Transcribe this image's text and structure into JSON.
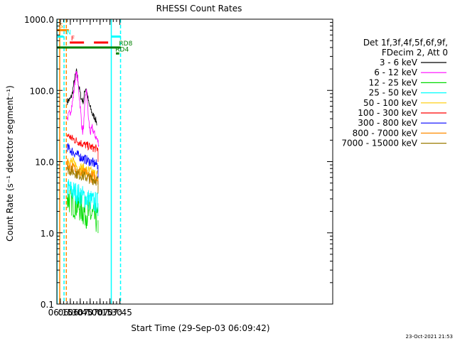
{
  "chart_data": {
    "type": "line",
    "title": "RHESSI Count Rates",
    "xlabel": "Start Time (29-Sep-03 06:09:42)",
    "ylabel": "Count Rate (s⁻¹ detector segment⁻¹)",
    "yscale": "log",
    "ylim": [
      0.1,
      1000
    ],
    "xlim_min": [
      369.7,
      787.0
    ],
    "y_ticks": [
      {
        "value": 1000,
        "label": "1000.0"
      },
      {
        "value": 100,
        "label": "100.0"
      },
      {
        "value": 10,
        "label": "10.0"
      },
      {
        "value": 1,
        "label": "1.0"
      },
      {
        "value": 0.1,
        "label": "0.1"
      }
    ],
    "x_ticks": [
      {
        "value": 375,
        "label": "06:15"
      },
      {
        "value": 390,
        "label": "06:30"
      },
      {
        "value": 405,
        "label": "06:45"
      },
      {
        "value": 420,
        "label": "07:00"
      },
      {
        "value": 435,
        "label": "07:15"
      },
      {
        "value": 450,
        "label": "07:30"
      },
      {
        "value": 465,
        "label": "07:45"
      }
    ],
    "legend_header": [
      "Det 1f,3f,4f,5f,6f,9f,",
      "FDecim 2, Att 0"
    ],
    "series": [
      {
        "name": "3 - 6 keV",
        "color": "#000000",
        "points": [
          [
            385.3,
            70
          ],
          [
            390,
            75
          ],
          [
            393,
            90
          ],
          [
            395,
            120
          ],
          [
            398,
            170
          ],
          [
            400,
            185
          ],
          [
            402,
            130
          ],
          [
            405,
            90
          ],
          [
            407,
            75
          ],
          [
            410,
            70
          ],
          [
            412,
            100
          ],
          [
            414,
            110
          ],
          [
            416,
            85
          ],
          [
            418,
            65
          ],
          [
            421,
            55
          ],
          [
            424,
            45
          ],
          [
            427,
            42
          ],
          [
            430,
            35
          ]
        ]
      },
      {
        "name": "6 - 12 keV",
        "color": "#ff00ff",
        "points": [
          [
            385.3,
            40
          ],
          [
            390,
            50
          ],
          [
            393,
            65
          ],
          [
            395,
            90
          ],
          [
            398,
            160
          ],
          [
            400,
            170
          ],
          [
            402,
            120
          ],
          [
            405,
            60
          ],
          [
            407,
            35
          ],
          [
            409,
            25
          ],
          [
            411,
            40
          ],
          [
            413,
            90
          ],
          [
            415,
            95
          ],
          [
            417,
            45
          ],
          [
            419,
            30
          ],
          [
            421,
            25
          ],
          [
            423,
            30
          ],
          [
            426,
            25
          ],
          [
            429,
            22
          ],
          [
            433,
            18
          ]
        ]
      },
      {
        "name": "12 - 25 keV",
        "color": "#00dd00",
        "points": [
          [
            385.3,
            3.0
          ],
          [
            390,
            3.0
          ],
          [
            395,
            2.6
          ],
          [
            400,
            2.5
          ],
          [
            405,
            2.3
          ],
          [
            410,
            2.0
          ],
          [
            415,
            1.9
          ],
          [
            420,
            1.8
          ],
          [
            425,
            1.7
          ],
          [
            432,
            1.5
          ]
        ]
      },
      {
        "name": "25 - 50 keV",
        "color": "#00ffff",
        "points": [
          [
            385.3,
            4.3
          ],
          [
            390,
            4.0
          ],
          [
            395,
            3.8
          ],
          [
            400,
            3.6
          ],
          [
            405,
            3.4
          ],
          [
            410,
            3.2
          ],
          [
            415,
            3.0
          ],
          [
            420,
            2.9
          ],
          [
            425,
            2.7
          ],
          [
            432,
            2.6
          ]
        ]
      },
      {
        "name": "50 - 100 keV",
        "color": "#ffcc00",
        "points": [
          [
            385.3,
            11
          ],
          [
            390,
            10
          ],
          [
            395,
            9.2
          ],
          [
            400,
            8.6
          ],
          [
            405,
            8.0
          ],
          [
            410,
            7.6
          ],
          [
            415,
            7.2
          ],
          [
            420,
            7.0
          ],
          [
            425,
            6.6
          ],
          [
            432,
            6.3
          ]
        ]
      },
      {
        "name": "100 - 300 keV",
        "color": "#ff0000",
        "points": [
          [
            385.3,
            24
          ],
          [
            390,
            22
          ],
          [
            395,
            20.5
          ],
          [
            400,
            19.5
          ],
          [
            405,
            18.5
          ],
          [
            410,
            17.5
          ],
          [
            415,
            16.8
          ],
          [
            420,
            16.2
          ],
          [
            425,
            15.5
          ],
          [
            432,
            15
          ]
        ]
      },
      {
        "name": "300 - 800 keV",
        "color": "#0000ff",
        "points": [
          [
            385.3,
            16
          ],
          [
            390,
            14.5
          ],
          [
            395,
            13.5
          ],
          [
            400,
            12.5
          ],
          [
            405,
            11.7
          ],
          [
            410,
            11
          ],
          [
            415,
            10.5
          ],
          [
            420,
            10
          ],
          [
            425,
            9.5
          ],
          [
            432,
            9
          ]
        ]
      },
      {
        "name": "800 - 7000 keV",
        "color": "#ff8c00",
        "points": [
          [
            385.3,
            9
          ],
          [
            390,
            8.5
          ],
          [
            395,
            8.0
          ],
          [
            400,
            7.5
          ],
          [
            405,
            7.1
          ],
          [
            410,
            6.8
          ],
          [
            415,
            6.5
          ],
          [
            420,
            6.2
          ],
          [
            425,
            6.0
          ],
          [
            432,
            5.8
          ]
        ]
      },
      {
        "name": "7000 - 15000 keV",
        "color": "#9a7a00",
        "points": [
          [
            385.3,
            8
          ],
          [
            390,
            7.5
          ],
          [
            395,
            7.2
          ],
          [
            400,
            6.8
          ],
          [
            405,
            6.5
          ],
          [
            410,
            6.3
          ],
          [
            415,
            6.0
          ],
          [
            420,
            5.8
          ],
          [
            425,
            5.6
          ],
          [
            432,
            5.4
          ]
        ]
      }
    ],
    "vertical_markers": [
      {
        "x": 370.0,
        "color": "#00ffff",
        "style": "solid"
      },
      {
        "x": 374.0,
        "color": "#ff8c00",
        "style": "solid"
      },
      {
        "x": 380.5,
        "color": "#00ffff",
        "style": "dashed"
      },
      {
        "x": 384.0,
        "color": "#ff8c00",
        "style": "dashed"
      },
      {
        "x": 452.0,
        "color": "#00ffff",
        "style": "solid"
      },
      {
        "x": 466.0,
        "color": "#00ffff",
        "style": "dashed"
      }
    ],
    "flag_bars": [
      {
        "label": "S",
        "color": "#ff8c00",
        "dashed": false,
        "y": 700,
        "x0": 369.7,
        "x1": 387.8,
        "label_x": 369.7
      },
      {
        "label": "N",
        "color": "#00ffff",
        "dashed": false,
        "y": 570,
        "x0": 369.7,
        "x1": 379.8,
        "label_x": 380.8
      },
      {
        "label": "N",
        "color": "#00ffff",
        "dashed": false,
        "y": 570,
        "x0": 452.0,
        "x1": 466.3,
        "label_x": null
      },
      {
        "label": "F",
        "color": "#ff0000",
        "dashed": true,
        "y": 470,
        "x0": 389.2,
        "x1": 449.5,
        "label_x": 387.8
      },
      {
        "label": "",
        "color": "#008000",
        "dashed": false,
        "y": 400,
        "x0": 369.7,
        "x1": 466.3,
        "label_x": null
      },
      {
        "label": "RD4",
        "color": "#008000",
        "dashed": false,
        "y": 330,
        "x0": 459.0,
        "x1": 464.0,
        "label_x": 455.0
      },
      {
        "label": "RD8",
        "color": "#008000",
        "dashed": false,
        "y": 400,
        "x0": 459.0,
        "x1": 459.0,
        "label_x": 460.5
      }
    ],
    "timestamp": "23-Oct-2021 21:53"
  }
}
